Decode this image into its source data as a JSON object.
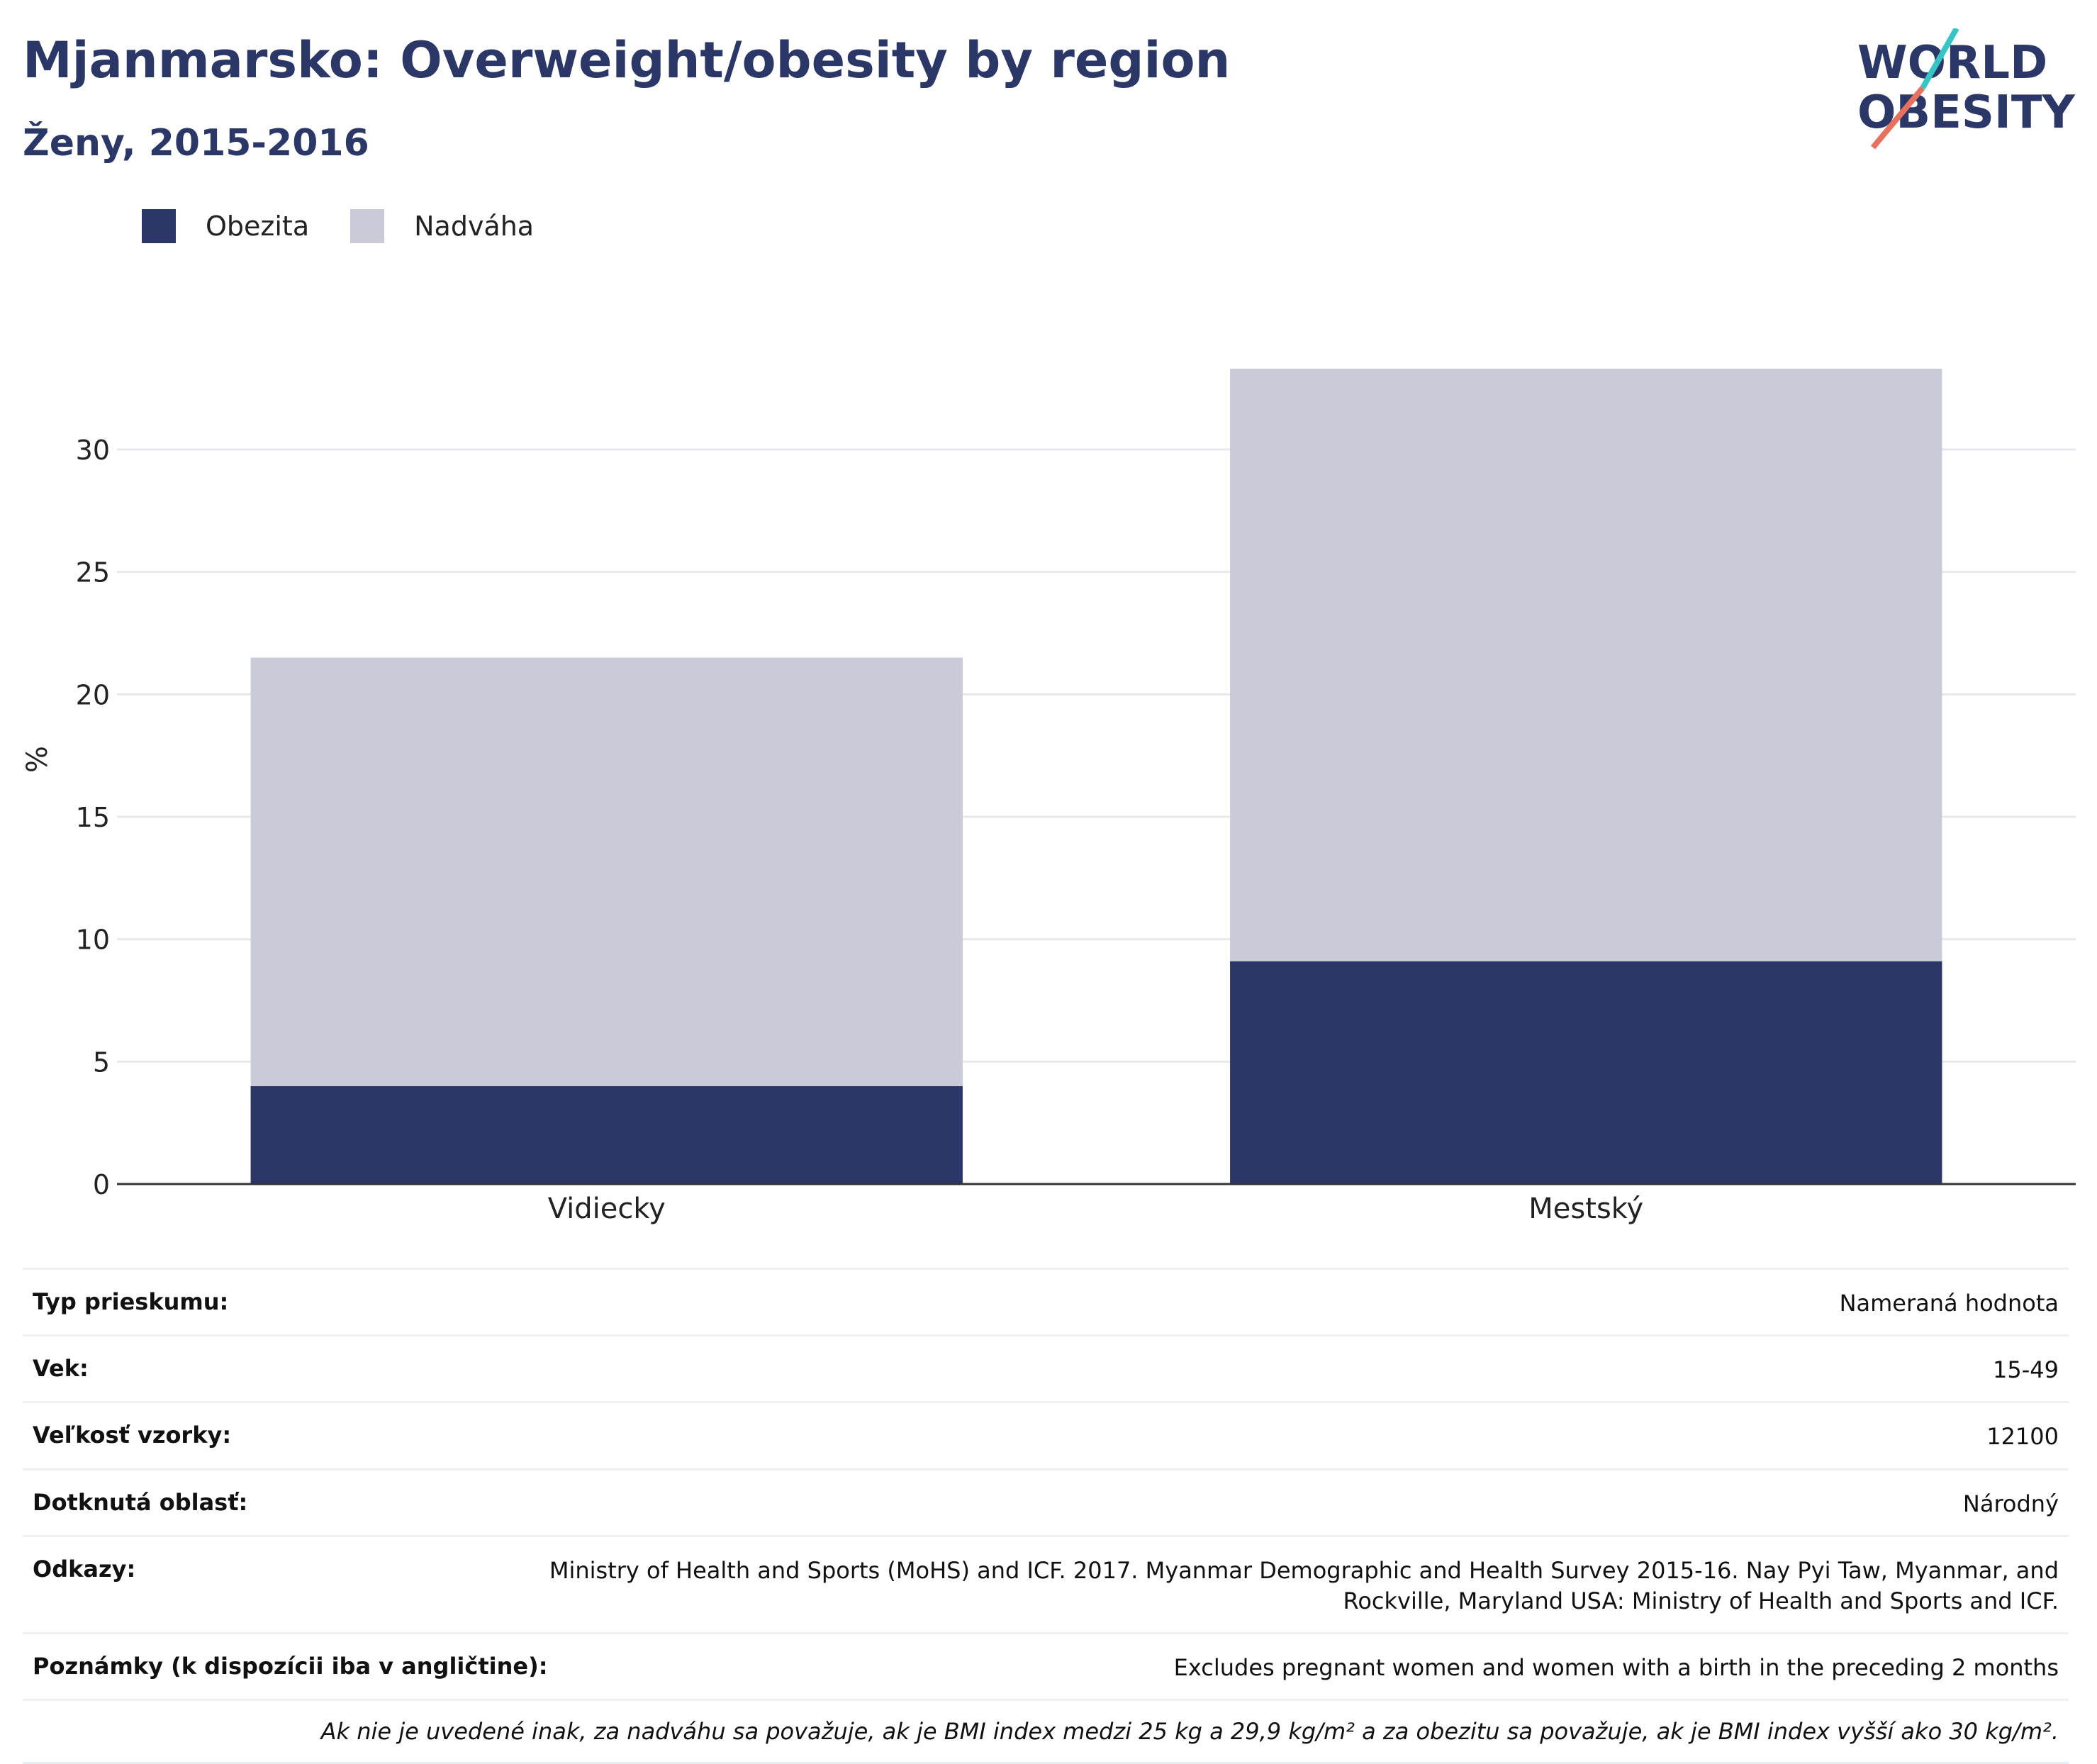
{
  "header": {
    "title": "Mjanmarsko: Overweight/obesity by region",
    "subtitle": "Ženy, 2015-2016"
  },
  "logo": {
    "line1": "WORLD",
    "line2": "OBESITY",
    "colors": {
      "text": "#2b3766",
      "slash_top": "#36c4c4",
      "slash_bottom": "#e8705e"
    }
  },
  "legend": {
    "items": [
      {
        "label": "Obezita",
        "color": "#2b3766"
      },
      {
        "label": "Nadváha",
        "color": "#c9ccd8"
      }
    ]
  },
  "chart_data": {
    "type": "bar",
    "stacked": true,
    "categories": [
      "Vidiecky",
      "Mestský"
    ],
    "series": [
      {
        "name": "Obezita",
        "values": [
          4.0,
          9.1
        ],
        "color": "#2b3766"
      },
      {
        "name": "Nadváha",
        "values": [
          17.5,
          24.2
        ],
        "color": "#c9ccd8"
      }
    ],
    "ylabel": "%",
    "ylim": [
      0,
      33.3
    ],
    "yticks": [
      0,
      5,
      10,
      15,
      20,
      25,
      30
    ],
    "grid": true,
    "legend_position": "top-left"
  },
  "info": {
    "rows": [
      {
        "key": "Typ prieskumu:",
        "value": "Nameraná hodnota"
      },
      {
        "key": "Vek:",
        "value": "15-49"
      },
      {
        "key": "Veľkosť vzorky:",
        "value": "12100"
      },
      {
        "key": "Dotknutá oblasť:",
        "value": "Národný"
      },
      {
        "key": "Odkazy:",
        "value": "Ministry of Health and Sports (MoHS) and ICF. 2017. Myanmar Demographic and Health Survey 2015-16. Nay Pyi Taw, Myanmar, and Rockville, Maryland USA: Ministry of Health and Sports and ICF."
      },
      {
        "key": "Poznámky (k dispozícii iba v angličtine):",
        "value": "Excludes pregnant women and women with a birth in the preceding 2 months"
      }
    ],
    "note": "Ak nie je uvedené inak, za nadváhu sa považuje, ak je BMI index medzi 25 kg a 29,9 kg/m² a za obezitu sa považuje, ak je BMI index vyšší ako 30 kg/m²."
  }
}
